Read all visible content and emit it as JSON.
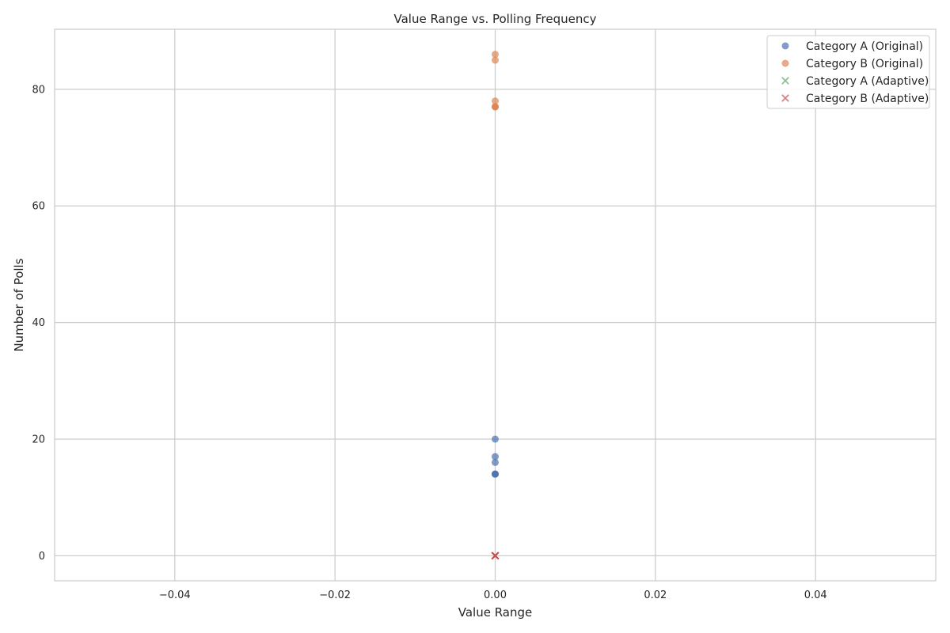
{
  "chart_data": {
    "type": "scatter",
    "title": "Value Range vs. Polling Frequency",
    "xlabel": "Value Range",
    "ylabel": "Number of Polls",
    "xlim": [
      -0.055,
      0.055
    ],
    "ylim": [
      -4.3,
      90.3
    ],
    "xticks": [
      -0.04,
      -0.02,
      0.0,
      0.02,
      0.04
    ],
    "xtick_labels": [
      "−0.04",
      "−0.02",
      "0.00",
      "0.02",
      "0.04"
    ],
    "yticks": [
      0,
      20,
      40,
      60,
      80
    ],
    "ytick_labels": [
      "0",
      "20",
      "40",
      "60",
      "80"
    ],
    "grid": true,
    "legend_position": "top-right",
    "series": [
      {
        "name": "Category A (Original)",
        "marker": "circle",
        "color": "#4c72b0",
        "points": [
          [
            0,
            20
          ],
          [
            0,
            17
          ],
          [
            0,
            16
          ],
          [
            0,
            14
          ],
          [
            0,
            14
          ],
          [
            0,
            14
          ]
        ]
      },
      {
        "name": "Category B (Original)",
        "marker": "circle",
        "color": "#dd8452",
        "points": [
          [
            0,
            86
          ],
          [
            0,
            85
          ],
          [
            0,
            78
          ],
          [
            0,
            77
          ],
          [
            0,
            77
          ],
          [
            0,
            77
          ]
        ]
      },
      {
        "name": "Category A (Adaptive)",
        "marker": "x",
        "color": "#55a868",
        "points": [
          [
            0,
            0
          ],
          [
            0,
            0
          ],
          [
            0,
            0
          ],
          [
            0,
            0
          ],
          [
            0,
            0
          ],
          [
            0,
            0
          ]
        ]
      },
      {
        "name": "Category B (Adaptive)",
        "marker": "x",
        "color": "#c44e52",
        "points": [
          [
            0,
            0
          ],
          [
            0,
            0
          ],
          [
            0,
            0
          ],
          [
            0,
            0
          ],
          [
            0,
            0
          ],
          [
            0,
            0
          ]
        ]
      }
    ]
  }
}
